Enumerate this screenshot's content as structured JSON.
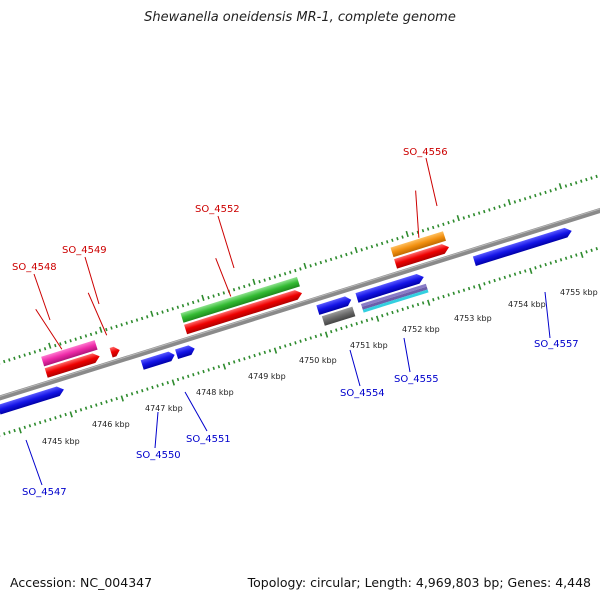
{
  "title": "Shewanella oneidensis MR-1, complete genome",
  "footer": {
    "accession": "Accession: NC_004347",
    "stats": "Topology: circular; Length: 4,969,803 bp; Genes: 4,448"
  },
  "colors": {
    "backbone": "#8a8a8a",
    "top_ticks": "#2e8b2e",
    "bottom_ticks": "#2e8b2e",
    "top_gene_label": "#cc0000",
    "bottom_gene_label": "#0000cc",
    "scale_label": "#222222"
  },
  "scale_labels": [
    "4745 kbp",
    "4746 kbp",
    "4747 kbp",
    "4748 kbp",
    "4749 kbp",
    "4750 kbp",
    "4751 kbp",
    "4752 kbp",
    "4753 kbp",
    "4754 kbp",
    "4755 kbp"
  ],
  "top_gene_labels": [
    "SO_4548",
    "SO_4549",
    "SO_4552",
    "SO_4556"
  ],
  "bottom_gene_labels": [
    "SO_4547",
    "SO_4550",
    "SO_4551",
    "SO_4554",
    "SO_4555",
    "SO_4557"
  ]
}
